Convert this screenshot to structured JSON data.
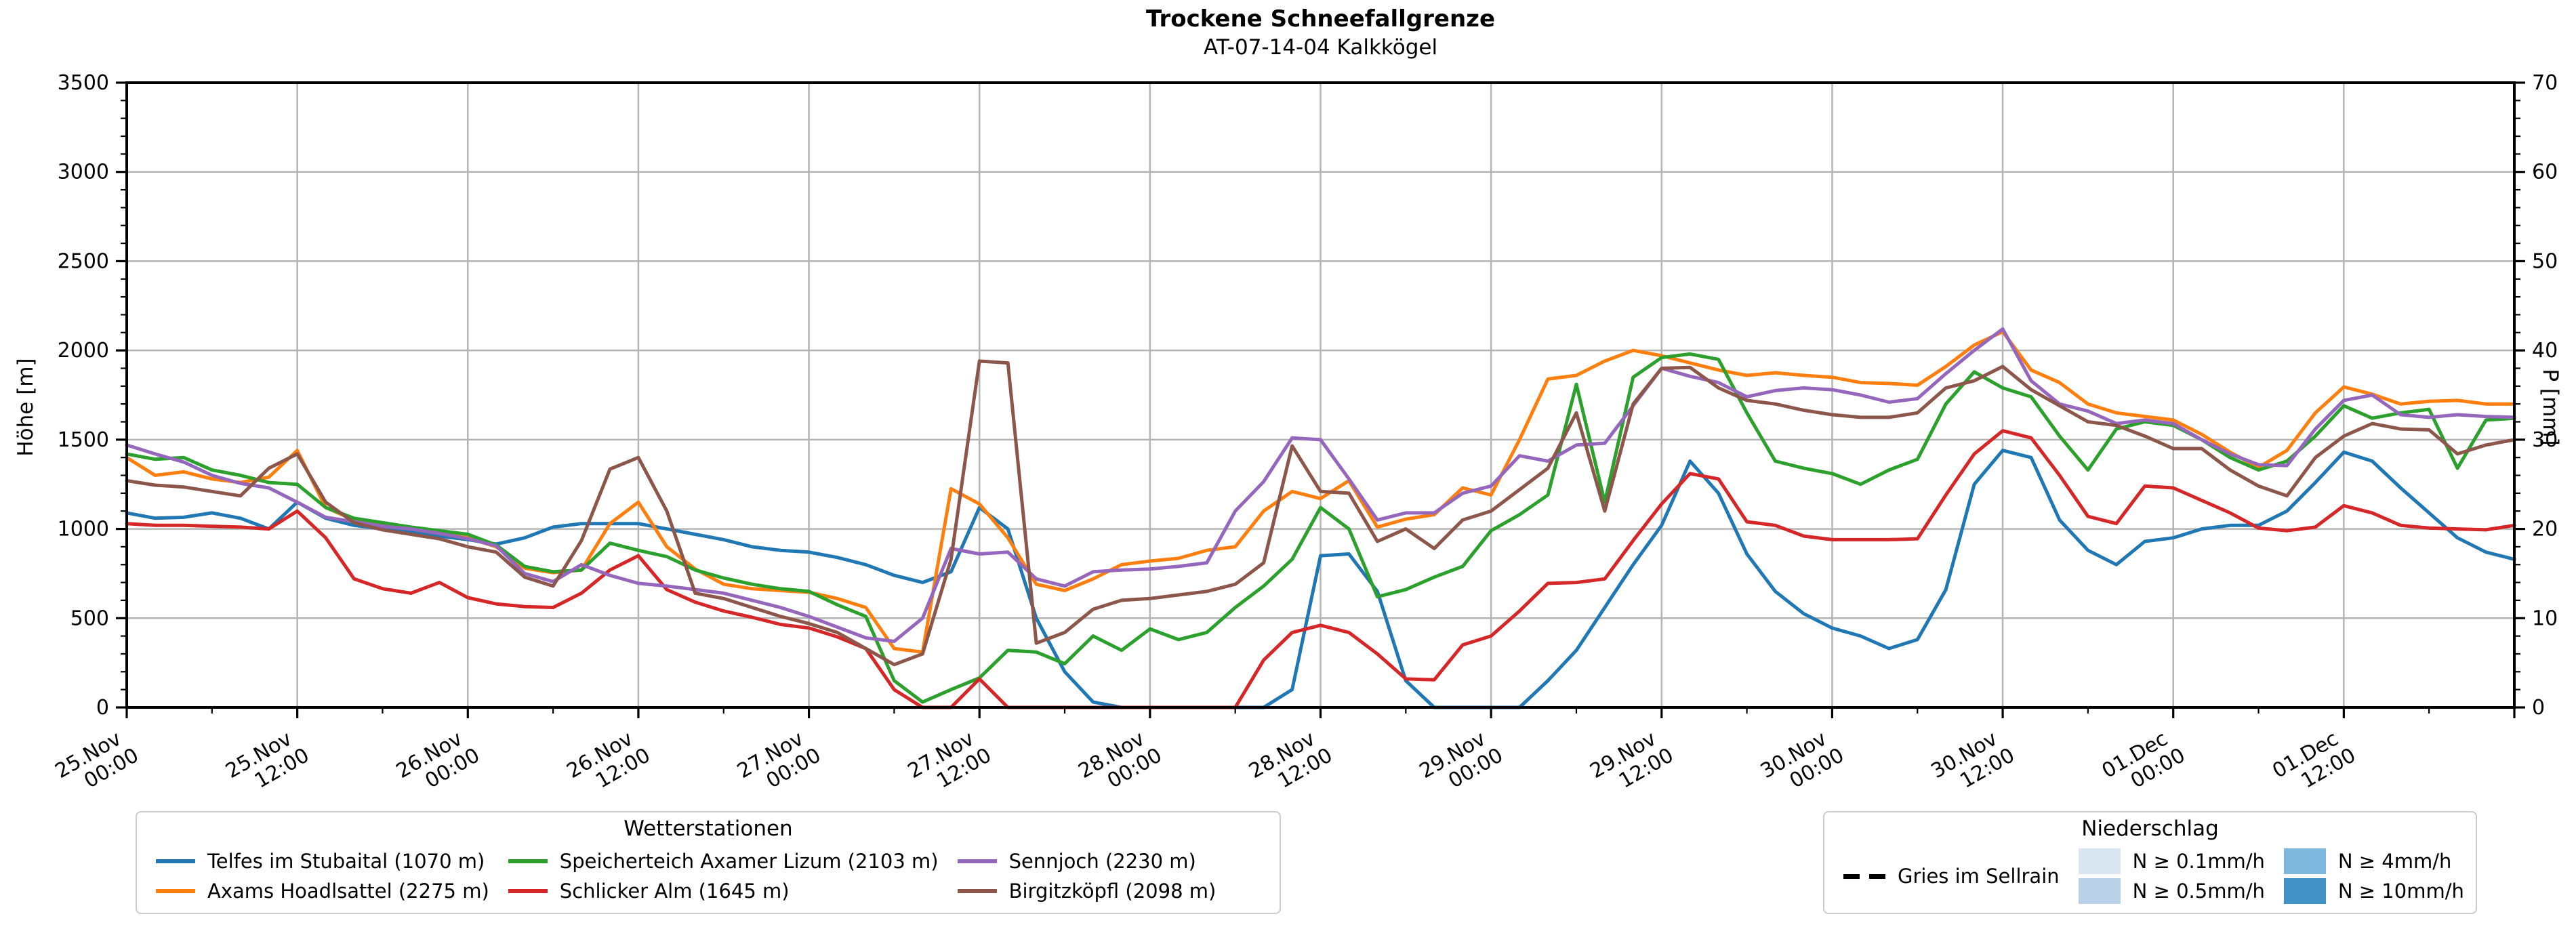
{
  "chart_data": {
    "type": "line",
    "title": "Trockene Schneefallgrenze",
    "subtitle": "AT-07-14-04 Kalkkögel",
    "ylabel_left": "Höhe [m]",
    "ylabel_right": "P [mm]",
    "ylim_left": [
      0,
      3500
    ],
    "ylim_right": [
      0,
      70
    ],
    "grid": true,
    "x_start_label": "25.Nov 00:00",
    "x_end_label": "02.Dec 00:00",
    "x_total_hours": 168,
    "x_step_hours": 2,
    "x_major_tick_every_hours": 12,
    "x_minor_tick_every_hours": 6,
    "y_ticks_left": [
      0,
      500,
      1000,
      1500,
      2000,
      2500,
      3000,
      3500
    ],
    "y_ticks_right": [
      0,
      10,
      20,
      30,
      40,
      50,
      60,
      70
    ],
    "x_tick_labels": [
      [
        "25.Nov",
        "00:00"
      ],
      [
        "25.Nov",
        "12:00"
      ],
      [
        "26.Nov",
        "00:00"
      ],
      [
        "26.Nov",
        "12:00"
      ],
      [
        "27.Nov",
        "00:00"
      ],
      [
        "27.Nov",
        "12:00"
      ],
      [
        "28.Nov",
        "00:00"
      ],
      [
        "28.Nov",
        "12:00"
      ],
      [
        "29.Nov",
        "00:00"
      ],
      [
        "29.Nov",
        "12:00"
      ],
      [
        "30.Nov",
        "00:00"
      ],
      [
        "30.Nov",
        "12:00"
      ],
      [
        "01.Dec",
        "00:00"
      ],
      [
        "01.Dec",
        "12:00"
      ]
    ],
    "series": [
      {
        "name": "Telfes im Stubaital (1070 m)",
        "color": "#1f77b4",
        "values": [
          1090,
          1060,
          1065,
          1090,
          1060,
          1000,
          1150,
          1060,
          1020,
          1000,
          985,
          960,
          940,
          915,
          950,
          1010,
          1030,
          1030,
          1030,
          1000,
          970,
          940,
          900,
          880,
          870,
          840,
          800,
          740,
          700,
          760,
          1120,
          1000,
          500,
          200,
          30,
          0,
          0,
          0,
          0,
          0,
          0,
          100,
          850,
          860,
          650,
          150,
          0,
          0,
          0,
          0,
          150,
          320,
          560,
          800,
          1020,
          1380,
          1200,
          860,
          650,
          525,
          445,
          400,
          330,
          380,
          660,
          1250,
          1440,
          1400,
          1050,
          880,
          800,
          930,
          950,
          1000,
          1020,
          1020,
          1100,
          1260,
          1430,
          1380,
          1230,
          1090,
          950,
          870,
          830
        ]
      },
      {
        "name": "Axams Hoadlsattel (2275 m)",
        "color": "#ff7f0e",
        "values": [
          1400,
          1300,
          1320,
          1280,
          1260,
          1290,
          1440,
          1120,
          1050,
          1020,
          1000,
          975,
          950,
          900,
          780,
          755,
          770,
          1030,
          1150,
          900,
          775,
          690,
          665,
          655,
          645,
          610,
          560,
          330,
          310,
          1225,
          1140,
          950,
          690,
          655,
          720,
          800,
          820,
          835,
          880,
          900,
          1100,
          1210,
          1170,
          1270,
          1010,
          1055,
          1080,
          1230,
          1190,
          1500,
          1840,
          1860,
          1940,
          2000,
          1970,
          1930,
          1890,
          1860,
          1875,
          1860,
          1850,
          1820,
          1815,
          1805,
          1910,
          2030,
          2105,
          1890,
          1820,
          1700,
          1650,
          1630,
          1610,
          1530,
          1430,
          1345,
          1440,
          1650,
          1795,
          1755,
          1700,
          1715,
          1720,
          1700,
          1700
        ]
      },
      {
        "name": "Speicherteich Axamer Lizum (2103 m)",
        "color": "#2ca02c",
        "values": [
          1420,
          1390,
          1400,
          1330,
          1300,
          1260,
          1250,
          1120,
          1060,
          1035,
          1010,
          990,
          970,
          910,
          790,
          760,
          770,
          920,
          880,
          845,
          770,
          725,
          690,
          665,
          650,
          575,
          510,
          150,
          30,
          100,
          165,
          320,
          310,
          245,
          400,
          320,
          440,
          380,
          420,
          560,
          680,
          830,
          1120,
          1000,
          620,
          660,
          730,
          790,
          990,
          1080,
          1190,
          1810,
          1150,
          1850,
          1960,
          1980,
          1950,
          1650,
          1380,
          1340,
          1310,
          1250,
          1330,
          1390,
          1700,
          1880,
          1790,
          1740,
          1520,
          1330,
          1560,
          1600,
          1580,
          1500,
          1400,
          1330,
          1380,
          1520,
          1690,
          1620,
          1650,
          1670,
          1340,
          1610,
          1620
        ]
      },
      {
        "name": "Schlicker Alm (1645 m)",
        "color": "#d62728",
        "values": [
          1030,
          1020,
          1020,
          1015,
          1010,
          1000,
          1100,
          950,
          720,
          665,
          640,
          700,
          615,
          580,
          565,
          560,
          640,
          770,
          850,
          660,
          590,
          540,
          505,
          465,
          445,
          395,
          330,
          100,
          0,
          0,
          160,
          0,
          0,
          0,
          0,
          0,
          0,
          0,
          0,
          0,
          265,
          420,
          460,
          420,
          300,
          160,
          155,
          350,
          400,
          540,
          695,
          700,
          720,
          935,
          1140,
          1310,
          1280,
          1040,
          1020,
          960,
          940,
          940,
          940,
          945,
          1190,
          1420,
          1550,
          1510,
          1300,
          1070,
          1030,
          1240,
          1230,
          1160,
          1090,
          1005,
          990,
          1010,
          1130,
          1090,
          1020,
          1005,
          1000,
          995,
          1020
        ]
      },
      {
        "name": "Sennjoch (2230 m)",
        "color": "#9467bd",
        "values": [
          1470,
          1420,
          1375,
          1300,
          1255,
          1230,
          1150,
          1065,
          1040,
          1015,
          1000,
          975,
          945,
          905,
          750,
          705,
          800,
          740,
          695,
          680,
          660,
          640,
          600,
          560,
          510,
          450,
          390,
          370,
          500,
          890,
          860,
          870,
          720,
          680,
          760,
          770,
          775,
          790,
          810,
          1100,
          1265,
          1510,
          1500,
          1280,
          1050,
          1090,
          1090,
          1200,
          1240,
          1410,
          1380,
          1470,
          1480,
          1690,
          1900,
          1855,
          1820,
          1740,
          1775,
          1790,
          1780,
          1750,
          1710,
          1730,
          1870,
          2000,
          2120,
          1830,
          1700,
          1660,
          1590,
          1610,
          1590,
          1500,
          1420,
          1360,
          1355,
          1560,
          1720,
          1750,
          1640,
          1625,
          1640,
          1630,
          1625
        ]
      },
      {
        "name": "Birgitzköpfl (2098 m)",
        "color": "#8c564b",
        "values": [
          1270,
          1245,
          1235,
          1210,
          1185,
          1340,
          1420,
          1150,
          1035,
          995,
          970,
          945,
          900,
          870,
          730,
          680,
          935,
          1335,
          1400,
          1100,
          640,
          610,
          560,
          510,
          470,
          420,
          330,
          240,
          300,
          830,
          1940,
          1930,
          360,
          420,
          550,
          600,
          610,
          630,
          650,
          690,
          810,
          1465,
          1210,
          1200,
          930,
          1000,
          890,
          1050,
          1100,
          1220,
          1340,
          1650,
          1100,
          1700,
          1900,
          1905,
          1790,
          1720,
          1700,
          1665,
          1640,
          1625,
          1625,
          1650,
          1790,
          1830,
          1910,
          1780,
          1690,
          1600,
          1580,
          1520,
          1450,
          1450,
          1330,
          1240,
          1185,
          1400,
          1520,
          1590,
          1560,
          1555,
          1420,
          1470,
          1500
        ]
      }
    ]
  },
  "legends": {
    "stations": {
      "title": "Wetterstationen"
    },
    "precip": {
      "title": "Niederschlag",
      "line_entry": {
        "label": "Gries im Sellrain",
        "color": "#000000",
        "style": "dashed"
      },
      "patch_entries": [
        {
          "label": "N ≥ 0.1mm/h",
          "color": "#dae7f3"
        },
        {
          "label": "N ≥ 0.5mm/h",
          "color": "#b9d2e8"
        },
        {
          "label": "N ≥ 4mm/h",
          "color": "#7eb8dc"
        },
        {
          "label": "N ≥ 10mm/h",
          "color": "#4292c6"
        }
      ]
    }
  },
  "layout_colors": {
    "grid": "#b4b4b4",
    "axis": "#000000",
    "legend_border": "#cccccc"
  }
}
